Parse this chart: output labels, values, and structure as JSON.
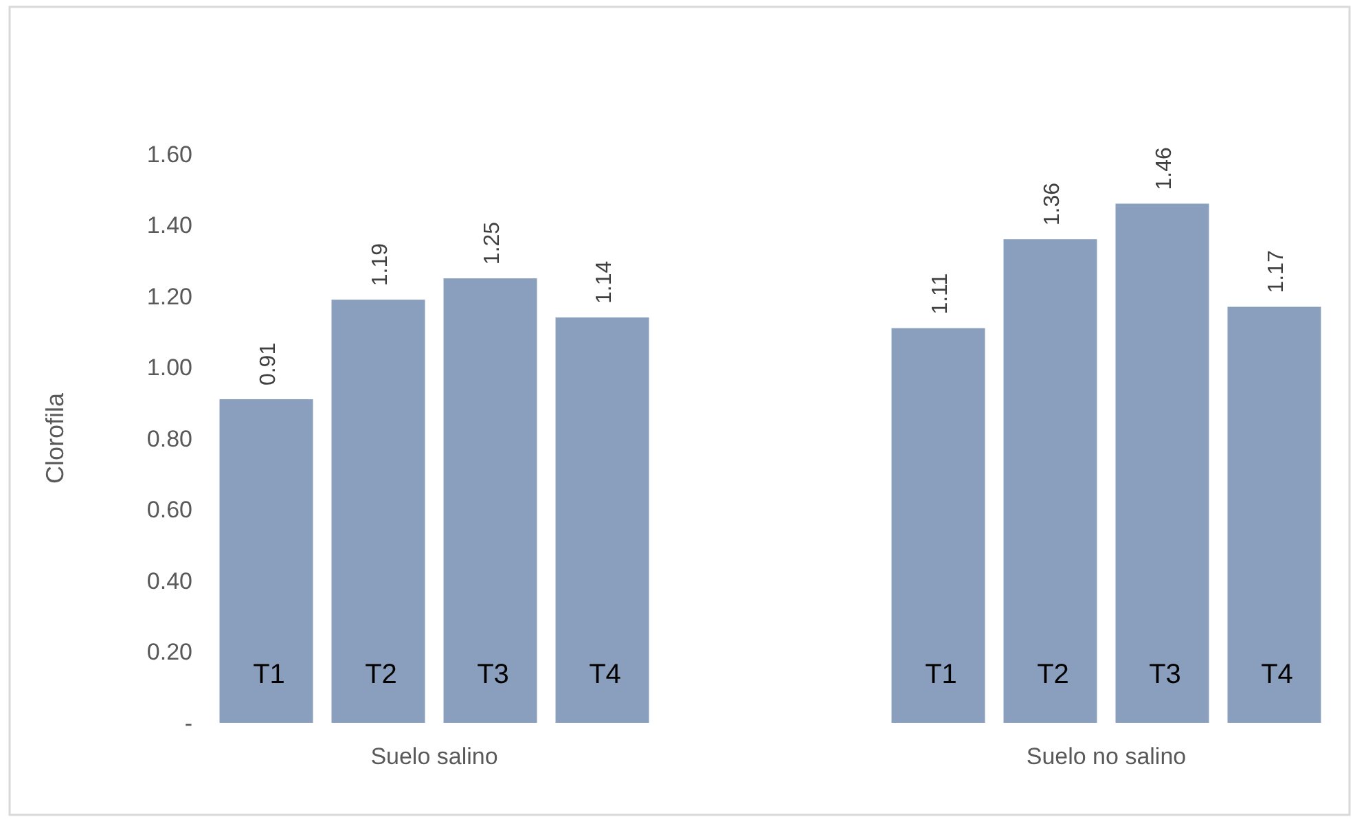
{
  "chart_data": {
    "type": "bar",
    "ylabel": "Clorofila",
    "categories": [
      "Suelo salino",
      "Suelo no salino"
    ],
    "series": [
      {
        "name": "T1",
        "color": "#8a9fbd",
        "values": [
          0.91,
          1.11
        ]
      },
      {
        "name": "T2",
        "color": "#8a9fbd",
        "values": [
          1.19,
          1.36
        ]
      },
      {
        "name": "T3",
        "color": "#8a9fbd",
        "values": [
          1.25,
          1.46
        ]
      },
      {
        "name": "T4",
        "color": "#8a9fbd",
        "values": [
          1.14,
          1.17
        ]
      }
    ],
    "ylim": [
      0,
      1.6
    ],
    "yticks": [
      {
        "value": 0,
        "label": "-"
      },
      {
        "value": 0.2,
        "label": "0.20"
      },
      {
        "value": 0.4,
        "label": "0.40"
      },
      {
        "value": 0.6,
        "label": "0.60"
      },
      {
        "value": 0.8,
        "label": "0.80"
      },
      {
        "value": 1,
        "label": "1.00"
      },
      {
        "value": 1.2,
        "label": "1.20"
      },
      {
        "value": 1.4,
        "label": "1.40"
      },
      {
        "value": 1.6,
        "label": "1.60"
      }
    ],
    "data_labels": true
  }
}
